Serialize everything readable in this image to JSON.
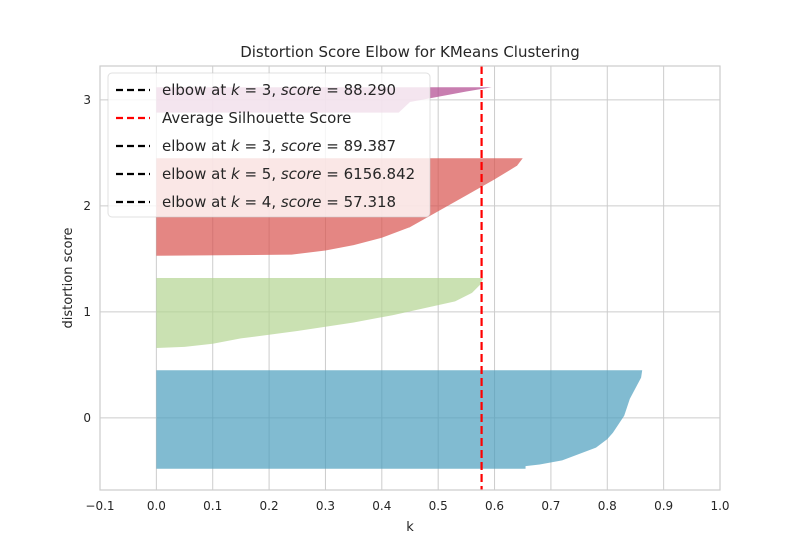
{
  "chart_data": {
    "type": "area",
    "title": "Distortion Score Elbow for KMeans Clustering",
    "xlabel": "k",
    "ylabel": "distortion score",
    "xlim": [
      -0.1,
      1.0
    ],
    "ylim": [
      -0.68,
      3.32
    ],
    "x_ticks": [
      -0.1,
      0.0,
      0.1,
      0.2,
      0.3,
      0.4,
      0.5,
      0.6,
      0.7,
      0.8,
      0.9,
      1.0
    ],
    "x_tick_labels": [
      "−0.1",
      "0.0",
      "0.1",
      "0.2",
      "0.3",
      "0.4",
      "0.5",
      "0.6",
      "0.7",
      "0.8",
      "0.9",
      "1.0"
    ],
    "y_ticks": [
      0,
      1,
      2,
      3
    ],
    "y_tick_labels": [
      "0",
      "1",
      "2",
      "3"
    ],
    "grid": true,
    "legend_position": "top-left",
    "average_silhouette_score": 0.577,
    "silhouette_clusters": [
      {
        "cluster": 0,
        "color": "#4c9ebd",
        "y_bottom": -0.48,
        "y_top": 0.45,
        "profile": [
          [
            0.862,
            0.45
          ],
          [
            0.86,
            0.38
          ],
          [
            0.85,
            0.28
          ],
          [
            0.84,
            0.18
          ],
          [
            0.835,
            0.1
          ],
          [
            0.83,
            0.02
          ],
          [
            0.82,
            -0.06
          ],
          [
            0.81,
            -0.14
          ],
          [
            0.8,
            -0.2
          ],
          [
            0.78,
            -0.28
          ],
          [
            0.75,
            -0.34
          ],
          [
            0.72,
            -0.4
          ],
          [
            0.68,
            -0.44
          ],
          [
            0.655,
            -0.455
          ],
          [
            0.655,
            -0.48
          ]
        ]
      },
      {
        "cluster": 1,
        "color": "#b4d492",
        "y_bottom": 0.66,
        "y_top": 1.32,
        "profile": [
          [
            0.58,
            1.32
          ],
          [
            0.575,
            1.26
          ],
          [
            0.56,
            1.18
          ],
          [
            0.53,
            1.1
          ],
          [
            0.48,
            1.04
          ],
          [
            0.42,
            0.97
          ],
          [
            0.35,
            0.9
          ],
          [
            0.25,
            0.82
          ],
          [
            0.15,
            0.75
          ],
          [
            0.1,
            0.7
          ],
          [
            0.05,
            0.67
          ],
          [
            0.0,
            0.66
          ]
        ]
      },
      {
        "cluster": 2,
        "color": "#d9534f",
        "y_bottom": 1.53,
        "y_top": 2.45,
        "profile": [
          [
            0.65,
            2.45
          ],
          [
            0.64,
            2.38
          ],
          [
            0.6,
            2.25
          ],
          [
            0.55,
            2.1
          ],
          [
            0.5,
            1.95
          ],
          [
            0.45,
            1.8
          ],
          [
            0.4,
            1.7
          ],
          [
            0.35,
            1.63
          ],
          [
            0.3,
            1.58
          ],
          [
            0.24,
            1.54
          ],
          [
            0.0,
            1.53
          ]
        ]
      },
      {
        "cluster": 3,
        "color": "#b0478f",
        "y_bottom": 2.88,
        "y_top": 3.12,
        "profile": [
          [
            0.595,
            3.12
          ],
          [
            0.55,
            3.08
          ],
          [
            0.5,
            3.03
          ],
          [
            0.45,
            2.98
          ],
          [
            0.43,
            2.88
          ]
        ]
      }
    ],
    "legend": [
      {
        "label_prefix": "elbow at ",
        "k_text": "k",
        "eq1": " = 3, ",
        "score_text": "score",
        "eq2": " = 88.290",
        "color": "#000000"
      },
      {
        "label": "Average Silhouette Score",
        "color": "#ff0000"
      },
      {
        "label_prefix": "elbow at ",
        "k_text": "k",
        "eq1": " = 3, ",
        "score_text": "score",
        "eq2": " = 89.387",
        "color": "#000000"
      },
      {
        "label_prefix": "elbow at ",
        "k_text": "k",
        "eq1": " = 5, ",
        "score_text": "score",
        "eq2": " = 6156.842",
        "color": "#000000"
      },
      {
        "label_prefix": "elbow at ",
        "k_text": "k",
        "eq1": " = 4, ",
        "score_text": "score",
        "eq2": " = 57.318",
        "color": "#000000"
      }
    ]
  }
}
